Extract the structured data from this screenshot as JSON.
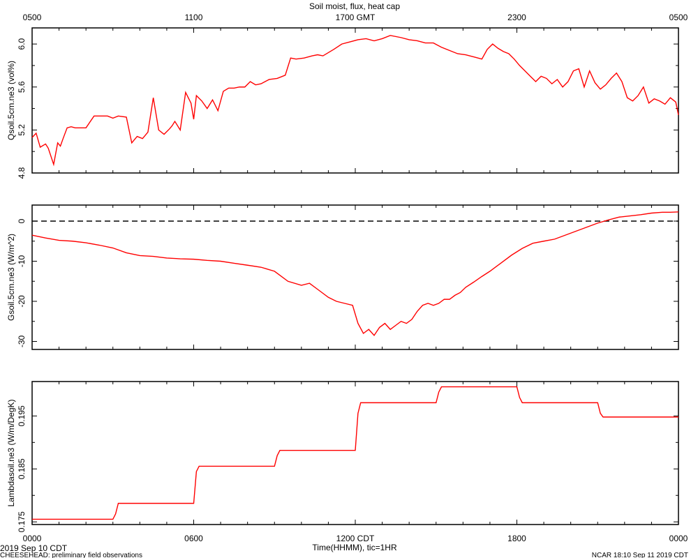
{
  "title": "Soil moist, flux, heat cap",
  "top_axis": {
    "ticks": [
      {
        "t": 0,
        "label": "0500"
      },
      {
        "t": 6,
        "label": "1100"
      },
      {
        "t": 12,
        "label": "1700 GMT"
      },
      {
        "t": 18,
        "label": "2300"
      },
      {
        "t": 24,
        "label": "0500"
      }
    ]
  },
  "bottom_axis": {
    "ticks": [
      {
        "t": 0,
        "label": "0000"
      },
      {
        "t": 6,
        "label": "0600"
      },
      {
        "t": 12,
        "label": "1200 CDT"
      },
      {
        "t": 18,
        "label": "1800"
      },
      {
        "t": 24,
        "label": "0000"
      }
    ],
    "xlabel": "Time(HHMM), tic=1HR",
    "date_label": "2019 Sep 10 CDT"
  },
  "footer": {
    "left": "CHEESEHEAD: preliminary field observations",
    "right": "NCAR 18:10 Sep 11 2019 CDT"
  },
  "chart_data": [
    {
      "type": "line",
      "ylabel": "Qsoil.5cm.ne3 (vol%)",
      "xlim": [
        0,
        24
      ],
      "ylim": [
        4.8,
        6.15
      ],
      "yticks": [
        4.8,
        5.2,
        5.6,
        6.0
      ],
      "ytick_labels": [
        "4.8",
        "5.2",
        "5.6",
        "6.0"
      ],
      "color": "#ff0000",
      "x": [
        0,
        0.15,
        0.3,
        0.5,
        0.6,
        0.8,
        0.95,
        1.05,
        1.15,
        1.3,
        1.45,
        1.6,
        1.8,
        2.0,
        2.3,
        2.8,
        3.0,
        3.2,
        3.5,
        3.7,
        3.9,
        4.1,
        4.3,
        4.5,
        4.7,
        4.9,
        5.1,
        5.2,
        5.3,
        5.5,
        5.7,
        5.8,
        5.9,
        6.0,
        6.1,
        6.3,
        6.5,
        6.7,
        6.9,
        7.1,
        7.3,
        7.5,
        7.7,
        7.9,
        8.1,
        8.3,
        8.5,
        8.8,
        9.1,
        9.4,
        9.6,
        9.8,
        10.1,
        10.4,
        10.6,
        10.8,
        11.0,
        11.2,
        11.5,
        11.8,
        12.1,
        12.4,
        12.7,
        13.0,
        13.3,
        13.7,
        14.0,
        14.3,
        14.6,
        14.9,
        15.2,
        15.5,
        15.8,
        16.1,
        16.4,
        16.7,
        16.9,
        17.1,
        17.3,
        17.5,
        17.7,
        17.9,
        18.1,
        18.3,
        18.5,
        18.7,
        18.9,
        19.1,
        19.3,
        19.5,
        19.7,
        19.9,
        20.1,
        20.3,
        20.5,
        20.7,
        20.9,
        21.1,
        21.3,
        21.5,
        21.7,
        21.9,
        22.1,
        22.3,
        22.5,
        22.7,
        22.9,
        23.1,
        23.3,
        23.5,
        23.7,
        23.9,
        24.0
      ],
      "values": [
        5.13,
        5.17,
        5.04,
        5.07,
        5.03,
        4.88,
        5.08,
        5.05,
        5.12,
        5.22,
        5.23,
        5.22,
        5.22,
        5.22,
        5.33,
        5.33,
        5.31,
        5.33,
        5.32,
        5.08,
        5.14,
        5.12,
        5.18,
        5.5,
        5.2,
        5.16,
        5.21,
        5.24,
        5.28,
        5.2,
        5.55,
        5.5,
        5.45,
        5.3,
        5.52,
        5.47,
        5.4,
        5.48,
        5.38,
        5.56,
        5.59,
        5.59,
        5.6,
        5.6,
        5.65,
        5.62,
        5.63,
        5.67,
        5.68,
        5.71,
        5.87,
        5.86,
        5.87,
        5.89,
        5.9,
        5.89,
        5.92,
        5.95,
        6.0,
        6.02,
        6.04,
        6.05,
        6.03,
        6.05,
        6.08,
        6.06,
        6.04,
        6.03,
        6.01,
        6.01,
        5.97,
        5.94,
        5.91,
        5.9,
        5.88,
        5.86,
        5.95,
        6.0,
        5.96,
        5.93,
        5.91,
        5.86,
        5.8,
        5.75,
        5.7,
        5.65,
        5.7,
        5.68,
        5.63,
        5.67,
        5.6,
        5.65,
        5.75,
        5.77,
        5.6,
        5.75,
        5.64,
        5.58,
        5.62,
        5.68,
        5.73,
        5.65,
        5.5,
        5.47,
        5.52,
        5.6,
        5.45,
        5.49,
        5.47,
        5.44,
        5.5,
        5.46,
        5.34
      ]
    },
    {
      "type": "line",
      "ylabel": "Gsoil.5cm.ne3 (W/m^2)",
      "xlim": [
        0,
        24
      ],
      "ylim": [
        -32,
        4
      ],
      "yticks": [
        -30,
        -20,
        -10,
        0
      ],
      "ytick_labels": [
        "-30",
        "-20",
        "-10",
        "0"
      ],
      "reference_line": 0,
      "color": "#ff0000",
      "x": [
        0,
        0.5,
        1.0,
        1.5,
        2.0,
        2.5,
        3.0,
        3.5,
        4.0,
        4.5,
        5.0,
        5.5,
        6.0,
        6.5,
        7.0,
        7.5,
        8.0,
        8.5,
        9.0,
        9.5,
        10.0,
        10.3,
        10.6,
        11.0,
        11.3,
        11.6,
        11.9,
        12.1,
        12.3,
        12.5,
        12.7,
        12.9,
        13.1,
        13.3,
        13.5,
        13.7,
        13.9,
        14.1,
        14.3,
        14.5,
        14.7,
        14.9,
        15.1,
        15.3,
        15.5,
        15.7,
        15.9,
        16.1,
        16.4,
        16.7,
        17.0,
        17.4,
        17.8,
        18.2,
        18.6,
        19.0,
        19.4,
        19.8,
        20.2,
        20.6,
        21.0,
        21.4,
        21.8,
        22.2,
        22.6,
        23.0,
        23.4,
        23.7,
        24.0
      ],
      "values": [
        -3.5,
        -4.2,
        -4.8,
        -5.0,
        -5.4,
        -6.0,
        -6.7,
        -7.9,
        -8.6,
        -8.8,
        -9.2,
        -9.4,
        -9.5,
        -9.8,
        -10.0,
        -10.5,
        -11.0,
        -11.5,
        -12.5,
        -15.0,
        -16.0,
        -15.5,
        -17.0,
        -19.0,
        -20.0,
        -20.5,
        -21.0,
        -25.5,
        -28.0,
        -27.0,
        -28.5,
        -26.5,
        -25.5,
        -27.0,
        -26.0,
        -25.0,
        -25.5,
        -24.5,
        -22.5,
        -21.0,
        -20.5,
        -21.0,
        -20.5,
        -19.5,
        -19.5,
        -18.5,
        -17.8,
        -16.5,
        -15.2,
        -13.8,
        -12.5,
        -10.5,
        -8.5,
        -6.8,
        -5.5,
        -5.0,
        -4.5,
        -3.5,
        -2.5,
        -1.5,
        -0.5,
        0.3,
        1.0,
        1.3,
        1.6,
        2.0,
        2.2,
        2.2,
        2.3
      ]
    },
    {
      "type": "line",
      "ylabel": "Lambdasoil.ne3 (W/m/DegK)",
      "xlim": [
        0,
        24
      ],
      "ylim": [
        0.1745,
        0.2015
      ],
      "yticks": [
        0.175,
        0.185,
        0.195
      ],
      "ytick_labels": [
        "0.175",
        "0.185",
        "0.195"
      ],
      "color": "#ff0000",
      "x": [
        0,
        3.0,
        3.1,
        3.2,
        6.0,
        6.1,
        6.2,
        9.0,
        9.1,
        9.2,
        12.0,
        12.1,
        12.2,
        15.0,
        15.1,
        15.2,
        18.0,
        18.1,
        18.2,
        21.0,
        21.1,
        21.2,
        24.0
      ],
      "values": [
        0.1755,
        0.1755,
        0.1765,
        0.1785,
        0.1785,
        0.1845,
        0.1855,
        0.1855,
        0.1875,
        0.1885,
        0.1885,
        0.1955,
        0.1975,
        0.1975,
        0.1995,
        0.2005,
        0.2005,
        0.1985,
        0.1975,
        0.1975,
        0.1955,
        0.1948,
        0.1948
      ]
    }
  ]
}
